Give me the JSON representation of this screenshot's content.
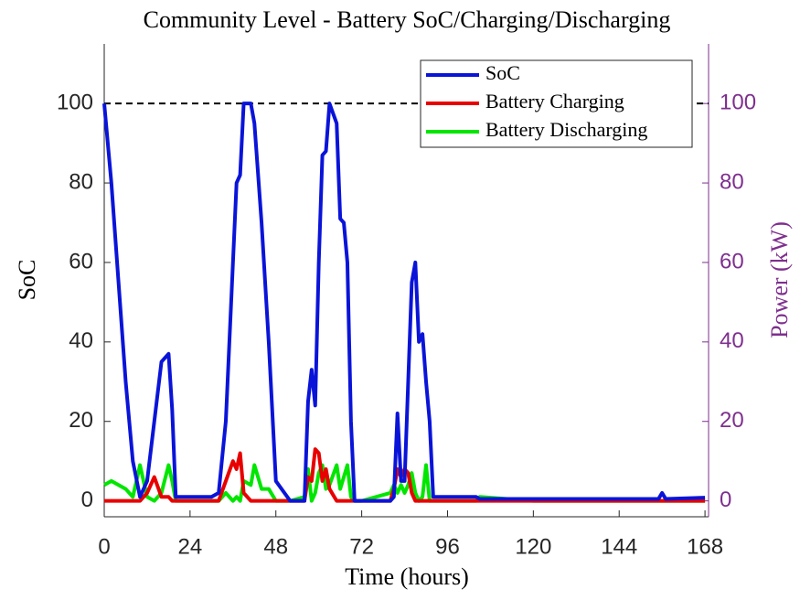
{
  "chart_data": {
    "type": "line",
    "title": "Community Level - Battery SoC/Charging/Discharging",
    "x_label": "Time (hours)",
    "y_label": "SoC",
    "y2_label": "Power (kW)",
    "x": [
      0,
      2,
      4,
      6,
      8,
      10,
      12,
      14,
      16,
      18,
      19,
      20,
      24,
      30,
      32,
      34,
      36,
      37,
      38,
      39,
      41,
      42,
      44,
      46,
      48,
      52,
      56,
      57,
      58,
      59,
      60,
      61,
      62,
      63,
      65,
      66,
      67,
      68,
      69,
      70,
      72,
      80,
      81,
      82,
      83,
      84,
      85,
      86,
      87,
      88,
      89,
      90,
      91,
      92,
      96,
      104,
      105,
      120,
      144,
      155,
      156,
      157,
      168
    ],
    "series": [
      {
        "name": "SoC",
        "color": "#0a14d8",
        "axis": "y",
        "values": [
          100,
          80,
          55,
          30,
          10,
          1,
          5,
          20,
          35,
          37,
          23,
          1,
          1,
          1,
          2,
          20,
          60,
          80,
          82,
          100,
          100,
          95,
          70,
          40,
          5,
          0,
          0,
          25,
          33,
          24,
          60,
          87,
          88,
          100,
          95,
          71,
          70,
          60,
          20,
          0,
          0,
          0,
          1,
          22,
          5,
          5,
          30,
          55,
          60,
          40,
          42,
          30,
          20,
          1,
          1,
          1,
          0.5,
          0.5,
          0.5,
          0.5,
          2,
          0.5,
          0.8
        ]
      },
      {
        "name": "Battery Charging",
        "color": "#e80000",
        "axis": "y2",
        "values": [
          0,
          0,
          0,
          0,
          0,
          0,
          2,
          6,
          1,
          1,
          0,
          0,
          0,
          0,
          0,
          5,
          10,
          8,
          12,
          2,
          0,
          0,
          0,
          0,
          0,
          0,
          0,
          6,
          5,
          13,
          12,
          5,
          8,
          3,
          0,
          0,
          0,
          0,
          0,
          0,
          0,
          0,
          3,
          8,
          6,
          8,
          7,
          2,
          0,
          0,
          0,
          0,
          0,
          0,
          0,
          0,
          0,
          0,
          0,
          0,
          0,
          0,
          0
        ]
      },
      {
        "name": "Battery Discharging",
        "color": "#00e600",
        "axis": "y2",
        "values": [
          4,
          5,
          4,
          3,
          1,
          9,
          1,
          0,
          2,
          9,
          5,
          0,
          0,
          0,
          0,
          2,
          0,
          1,
          0,
          5,
          4,
          9,
          3,
          3,
          0,
          0,
          1,
          8,
          0,
          2,
          7,
          9,
          3,
          4,
          9,
          3,
          6,
          9,
          1,
          0,
          0,
          2,
          4,
          2,
          4,
          2,
          4,
          7,
          2,
          0,
          1,
          9,
          0,
          0,
          0,
          0,
          1,
          0,
          0,
          0,
          0,
          0,
          0
        ]
      }
    ],
    "hline": 100,
    "xlim": [
      0,
      169
    ],
    "ylim": [
      -4,
      115
    ],
    "y2lim": [
      -4,
      115
    ],
    "xticks": [
      0,
      24,
      48,
      72,
      96,
      120,
      144,
      168
    ],
    "yticks": [
      0,
      20,
      40,
      60,
      80,
      100
    ],
    "y2ticks": [
      0,
      20,
      40,
      60,
      80,
      100
    ],
    "y2_color": "#7e2f8e",
    "legend": "top-right"
  }
}
